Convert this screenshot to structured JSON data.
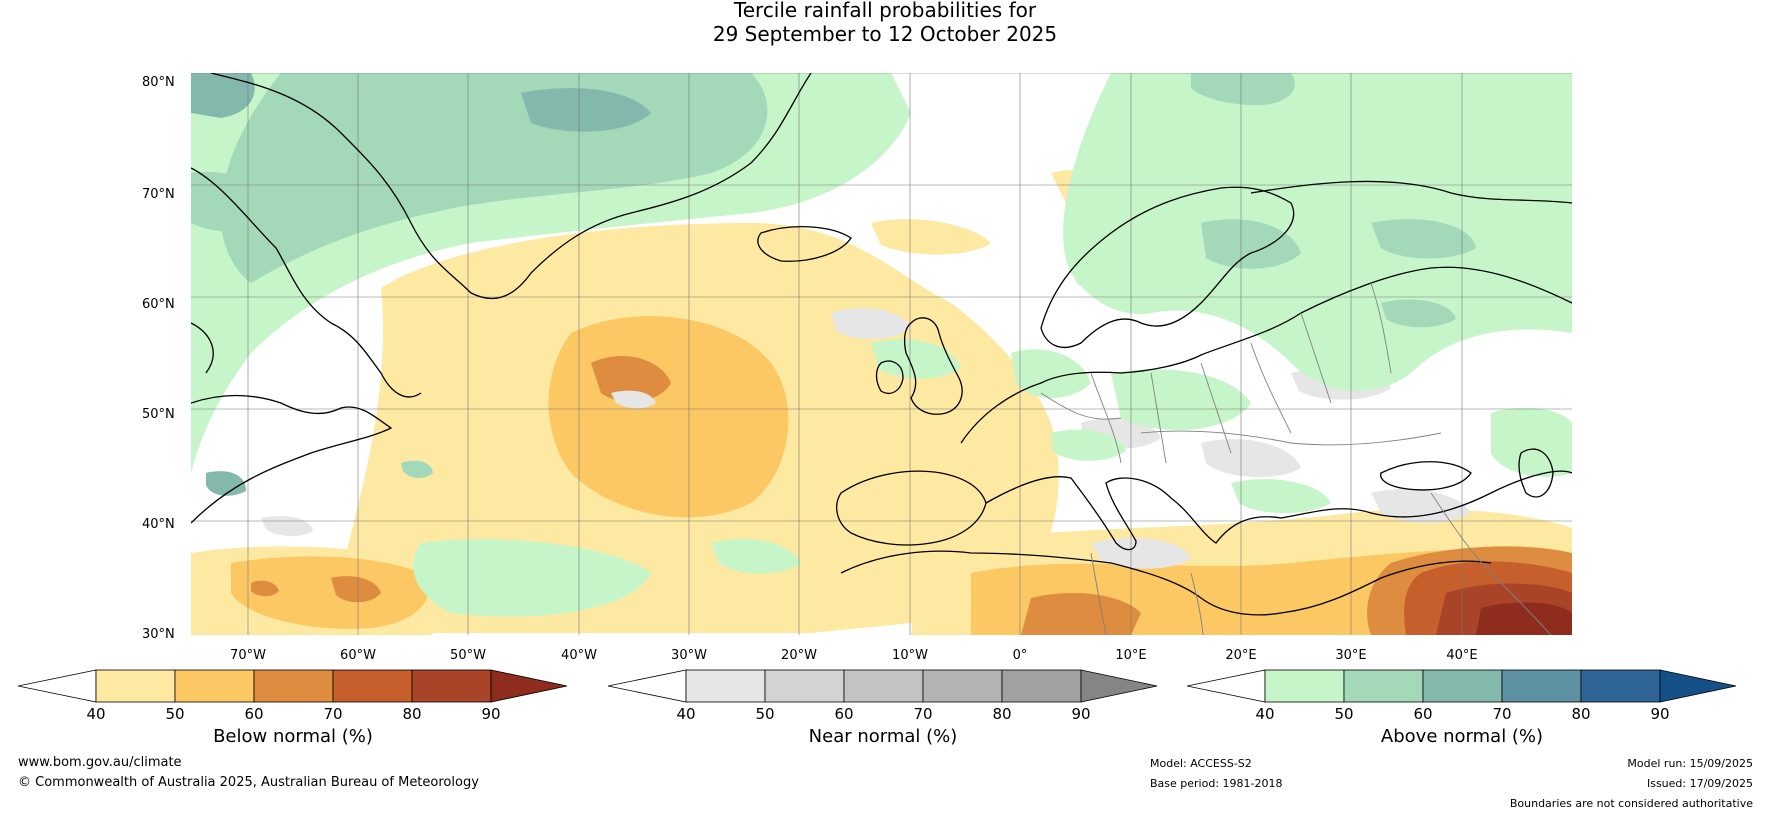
{
  "title": {
    "line1": "Tercile rainfall probabilities for",
    "line2": "29 September to 12 October 2025"
  },
  "map": {
    "lat_labels": [
      "80°N",
      "70°N",
      "60°N",
      "50°N",
      "40°N",
      "30°N"
    ],
    "lon_labels": [
      "70°W",
      "60°W",
      "50°W",
      "40°W",
      "30°W",
      "20°W",
      "10°W",
      "0°",
      "10°E",
      "20°E",
      "30°E",
      "40°E"
    ]
  },
  "colorbars": [
    {
      "label": "Below normal (%)",
      "ticks": [
        "40",
        "50",
        "60",
        "70",
        "80",
        "90"
      ],
      "colors": [
        "#ffffff",
        "#fee9a3",
        "#fbc864",
        "#de8c3f",
        "#c75f2d",
        "#aa4428",
        "#8e2d1d"
      ]
    },
    {
      "label": "Near normal (%)",
      "ticks": [
        "40",
        "50",
        "60",
        "70",
        "80",
        "90"
      ],
      "colors": [
        "#ffffff",
        "#e6e6e6",
        "#d3d3d3",
        "#c3c3c3",
        "#b3b3b3",
        "#a1a1a1",
        "#858585"
      ]
    },
    {
      "label": "Above normal (%)",
      "ticks": [
        "40",
        "50",
        "60",
        "70",
        "80",
        "90"
      ],
      "colors": [
        "#ffffff",
        "#c6f5c9",
        "#a3d8b9",
        "#83b8ac",
        "#5d90a0",
        "#2f6496",
        "#154f87"
      ]
    }
  ],
  "footer": {
    "website": "www.bom.gov.au/climate",
    "copyright": "© Commonwealth of Australia 2025, Australian Bureau of Meteorology",
    "model": "Model: ACCESS-S2",
    "base_period": "Base period: 1981-2018",
    "model_run": "Model run: 15/09/2025",
    "issued": "Issued: 17/09/2025",
    "disclaimer": "Boundaries are not considered authoritative"
  }
}
